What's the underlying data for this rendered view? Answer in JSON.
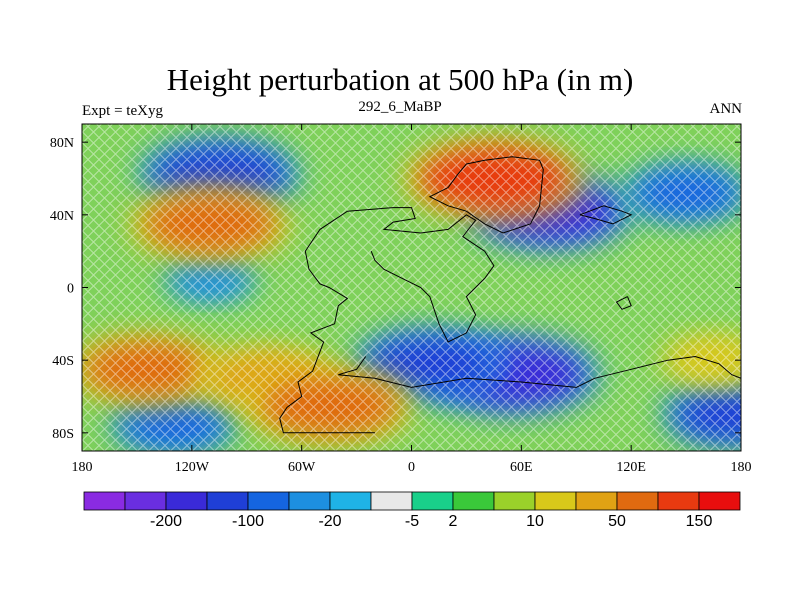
{
  "title": "Height perturbation at 500 hPa (in m)",
  "subtitle_left": "Expt = teXyg",
  "subtitle_center": "292_6_MaBP",
  "subtitle_right": "ANN",
  "chart_data": {
    "type": "heatmap",
    "xlim": [
      -180,
      180
    ],
    "ylim": [
      -90,
      90
    ],
    "x_ticks": [
      {
        "value": -180,
        "label": "180"
      },
      {
        "value": -120,
        "label": "120W"
      },
      {
        "value": -60,
        "label": "60W"
      },
      {
        "value": 0,
        "label": "0"
      },
      {
        "value": 60,
        "label": "60E"
      },
      {
        "value": 120,
        "label": "120E"
      },
      {
        "value": 180,
        "label": "180"
      }
    ],
    "y_ticks": [
      {
        "value": 80,
        "label": "80N"
      },
      {
        "value": 40,
        "label": "40N"
      },
      {
        "value": 0,
        "label": "0"
      },
      {
        "value": -40,
        "label": "40S"
      },
      {
        "value": -80,
        "label": "80S"
      }
    ],
    "colorbar": {
      "colors": [
        "#8a2be2",
        "#6a2ee0",
        "#3a2ad8",
        "#1f3fd6",
        "#1565e0",
        "#1d8fe0",
        "#1fb3e6",
        "#e8e8e8",
        "#19d08a",
        "#3ac83a",
        "#9ad12a",
        "#d8c81a",
        "#e0a214",
        "#e06a10",
        "#e83a10",
        "#e80e0e"
      ],
      "labels": [
        {
          "after_index": 1,
          "text": "-200"
        },
        {
          "after_index": 3,
          "text": "-100"
        },
        {
          "after_index": 5,
          "text": "-20"
        },
        {
          "after_index": 7,
          "text": "-5"
        },
        {
          "after_index": 8,
          "text": "2"
        },
        {
          "after_index": 10,
          "text": "10"
        },
        {
          "after_index": 12,
          "text": "50"
        },
        {
          "after_index": 14,
          "text": "150"
        }
      ]
    },
    "field_centers": [
      {
        "lon": -105,
        "lat": 62,
        "value": -140
      },
      {
        "lon": 75,
        "lat": 42,
        "value": -150
      },
      {
        "lon": 150,
        "lat": 52,
        "value": -90
      },
      {
        "lon": -110,
        "lat": 5,
        "value": -40
      },
      {
        "lon": 55,
        "lat": -48,
        "value": -160
      },
      {
        "lon": 10,
        "lat": -42,
        "value": -130
      },
      {
        "lon": -130,
        "lat": -75,
        "value": -90
      },
      {
        "lon": 175,
        "lat": -70,
        "value": -110
      },
      {
        "lon": 45,
        "lat": 60,
        "value": 170
      },
      {
        "lon": -110,
        "lat": 35,
        "value": 140
      },
      {
        "lon": -145,
        "lat": -45,
        "value": 130
      },
      {
        "lon": -80,
        "lat": -50,
        "value": 110
      },
      {
        "lon": -45,
        "lat": -65,
        "value": 150
      },
      {
        "lon": 165,
        "lat": -40,
        "value": 60
      }
    ],
    "continent_outlines": [
      [
        [
          -20,
          -80
        ],
        [
          -70,
          -80
        ],
        [
          -72,
          -72
        ],
        [
          -68,
          -66
        ],
        [
          -60,
          -60
        ],
        [
          -62,
          -52
        ],
        [
          -54,
          -46
        ],
        [
          -48,
          -30
        ],
        [
          -55,
          -25
        ],
        [
          -42,
          -20
        ],
        [
          -40,
          -10
        ],
        [
          -35,
          -6
        ],
        [
          -45,
          0
        ],
        [
          -50,
          2
        ],
        [
          -56,
          10
        ],
        [
          -58,
          20
        ],
        [
          -50,
          32
        ],
        [
          -35,
          42
        ],
        [
          -10,
          44
        ],
        [
          0,
          44
        ],
        [
          2,
          38
        ],
        [
          -10,
          36
        ],
        [
          -15,
          32
        ],
        [
          5,
          30
        ],
        [
          20,
          32
        ],
        [
          30,
          40
        ],
        [
          35,
          37
        ],
        [
          28,
          28
        ],
        [
          40,
          20
        ],
        [
          45,
          12
        ],
        [
          40,
          5
        ],
        [
          30,
          -5
        ],
        [
          35,
          -15
        ],
        [
          30,
          -25
        ],
        [
          20,
          -30
        ],
        [
          15,
          -20
        ],
        [
          10,
          -5
        ],
        [
          5,
          0
        ],
        [
          -5,
          5
        ],
        [
          -15,
          10
        ],
        [
          -20,
          15
        ],
        [
          -22,
          20
        ]
      ],
      [
        [
          20,
          55
        ],
        [
          25,
          62
        ],
        [
          30,
          68
        ],
        [
          40,
          70
        ],
        [
          55,
          72
        ],
        [
          70,
          70
        ],
        [
          72,
          65
        ],
        [
          70,
          45
        ],
        [
          65,
          35
        ],
        [
          50,
          30
        ],
        [
          40,
          35
        ],
        [
          30,
          42
        ],
        [
          20,
          45
        ],
        [
          10,
          50
        ],
        [
          20,
          55
        ]
      ],
      [
        [
          -25,
          -38
        ],
        [
          -30,
          -45
        ],
        [
          -40,
          -48
        ],
        [
          -20,
          -50
        ],
        [
          0,
          -55
        ],
        [
          30,
          -50
        ],
        [
          60,
          -52
        ],
        [
          90,
          -55
        ],
        [
          100,
          -50
        ],
        [
          120,
          -45
        ],
        [
          140,
          -40
        ],
        [
          155,
          -38
        ],
        [
          168,
          -42
        ],
        [
          175,
          -48
        ],
        [
          180,
          -50
        ]
      ],
      [
        [
          92,
          40
        ],
        [
          105,
          45
        ],
        [
          115,
          42
        ],
        [
          120,
          40
        ],
        [
          110,
          35
        ],
        [
          100,
          38
        ],
        [
          92,
          40
        ]
      ],
      [
        [
          118,
          -5
        ],
        [
          120,
          -10
        ],
        [
          115,
          -12
        ],
        [
          112,
          -8
        ],
        [
          118,
          -5
        ]
      ]
    ]
  }
}
